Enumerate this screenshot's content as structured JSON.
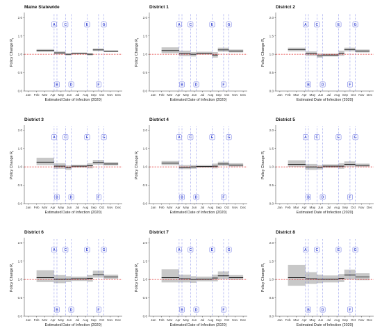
{
  "months": [
    "Jan",
    "Feb",
    "Mar",
    "Apr",
    "May",
    "Jun",
    "Jul",
    "Aug",
    "Sep",
    "Oct",
    "Nov",
    "Dec"
  ],
  "xlabel": "Estimated Date of Infection (2020)",
  "ylabel": "Policy Change R",
  "ylabel_sub": "t",
  "yticks": [
    "0.0",
    "0.5",
    "1.0",
    "1.5",
    "2.0"
  ],
  "policies": [
    {
      "label": "A",
      "month": 3.15,
      "pos": "top"
    },
    {
      "label": "B",
      "month": 3.5,
      "pos": "bottom"
    },
    {
      "label": "C",
      "month": 4.55,
      "pos": "top"
    },
    {
      "label": "D",
      "month": 5.25,
      "pos": "bottom"
    },
    {
      "label": "E",
      "month": 7.2,
      "pos": "top"
    },
    {
      "label": "F",
      "month": 8.6,
      "pos": "bottom"
    },
    {
      "label": "G",
      "month": 9.25,
      "pos": "top"
    }
  ],
  "colors": {
    "reference": "#e03030",
    "policy": "#5a64e0",
    "band": "#c8c8c8",
    "line": "#111111"
  },
  "chart_data": [
    {
      "type": "line",
      "title": "Maine Statewide",
      "ylim": [
        0,
        2
      ],
      "segments": [
        {
          "x": [
            1.0,
            3.15
          ],
          "y": 1.1,
          "lo": 1.07,
          "hi": 1.14
        },
        {
          "x": [
            3.15,
            4.55
          ],
          "y": 1.04,
          "lo": 1.0,
          "hi": 1.08
        },
        {
          "x": [
            4.55,
            5.25
          ],
          "y": 1.0,
          "lo": 0.97,
          "hi": 1.03
        },
        {
          "x": [
            5.25,
            7.2
          ],
          "y": 1.02,
          "lo": 1.0,
          "hi": 1.05
        },
        {
          "x": [
            7.2,
            7.9
          ],
          "y": 1.0,
          "lo": 0.97,
          "hi": 1.04
        },
        {
          "x": [
            7.9,
            9.25
          ],
          "y": 1.12,
          "lo": 1.09,
          "hi": 1.16
        },
        {
          "x": [
            9.25,
            11.0
          ],
          "y": 1.08,
          "lo": 1.06,
          "hi": 1.11
        }
      ]
    },
    {
      "type": "line",
      "title": "District 1",
      "ylim": [
        0,
        2
      ],
      "segments": [
        {
          "x": [
            1.0,
            3.15
          ],
          "y": 1.1,
          "lo": 1.03,
          "hi": 1.19
        },
        {
          "x": [
            3.15,
            4.55
          ],
          "y": 1.02,
          "lo": 0.95,
          "hi": 1.1
        },
        {
          "x": [
            4.55,
            5.25
          ],
          "y": 1.0,
          "lo": 0.94,
          "hi": 1.06
        },
        {
          "x": [
            5.25,
            7.2
          ],
          "y": 1.03,
          "lo": 0.99,
          "hi": 1.07
        },
        {
          "x": [
            7.2,
            7.9
          ],
          "y": 0.98,
          "lo": 0.91,
          "hi": 1.06
        },
        {
          "x": [
            7.9,
            9.25
          ],
          "y": 1.12,
          "lo": 1.07,
          "hi": 1.18
        },
        {
          "x": [
            9.25,
            11.0
          ],
          "y": 1.09,
          "lo": 1.05,
          "hi": 1.13
        }
      ]
    },
    {
      "type": "line",
      "title": "District 2",
      "ylim": [
        0,
        2
      ],
      "segments": [
        {
          "x": [
            1.0,
            3.15
          ],
          "y": 1.13,
          "lo": 1.08,
          "hi": 1.18
        },
        {
          "x": [
            3.15,
            4.55
          ],
          "y": 1.02,
          "lo": 0.96,
          "hi": 1.08
        },
        {
          "x": [
            4.55,
            5.25
          ],
          "y": 0.96,
          "lo": 0.91,
          "hi": 1.02
        },
        {
          "x": [
            5.25,
            7.2
          ],
          "y": 0.98,
          "lo": 0.94,
          "hi": 1.02
        },
        {
          "x": [
            7.2,
            7.9
          ],
          "y": 1.03,
          "lo": 0.96,
          "hi": 1.1
        },
        {
          "x": [
            7.9,
            9.25
          ],
          "y": 1.13,
          "lo": 1.08,
          "hi": 1.18
        },
        {
          "x": [
            9.25,
            11.0
          ],
          "y": 1.09,
          "lo": 1.05,
          "hi": 1.13
        }
      ]
    },
    {
      "type": "line",
      "title": "District 3",
      "ylim": [
        0,
        2
      ],
      "segments": [
        {
          "x": [
            1.0,
            3.15
          ],
          "y": 1.13,
          "lo": 1.05,
          "hi": 1.25
        },
        {
          "x": [
            3.15,
            4.55
          ],
          "y": 1.02,
          "lo": 0.95,
          "hi": 1.1
        },
        {
          "x": [
            4.55,
            5.25
          ],
          "y": 0.98,
          "lo": 0.92,
          "hi": 1.04
        },
        {
          "x": [
            5.25,
            7.2
          ],
          "y": 1.02,
          "lo": 0.98,
          "hi": 1.06
        },
        {
          "x": [
            7.2,
            7.9
          ],
          "y": 1.03,
          "lo": 0.96,
          "hi": 1.1
        },
        {
          "x": [
            7.9,
            9.25
          ],
          "y": 1.12,
          "lo": 1.06,
          "hi": 1.19
        },
        {
          "x": [
            9.25,
            11.0
          ],
          "y": 1.08,
          "lo": 1.04,
          "hi": 1.13
        }
      ]
    },
    {
      "type": "line",
      "title": "District 4",
      "ylim": [
        0,
        2
      ],
      "segments": [
        {
          "x": [
            1.0,
            3.15
          ],
          "y": 1.1,
          "lo": 1.05,
          "hi": 1.16
        },
        {
          "x": [
            3.15,
            4.55
          ],
          "y": 0.99,
          "lo": 0.94,
          "hi": 1.05
        },
        {
          "x": [
            4.55,
            5.25
          ],
          "y": 1.0,
          "lo": 0.95,
          "hi": 1.05
        },
        {
          "x": [
            5.25,
            7.2
          ],
          "y": 1.01,
          "lo": 0.98,
          "hi": 1.05
        },
        {
          "x": [
            7.2,
            7.9
          ],
          "y": 1.02,
          "lo": 0.96,
          "hi": 1.09
        },
        {
          "x": [
            7.9,
            9.25
          ],
          "y": 1.08,
          "lo": 1.03,
          "hi": 1.14
        },
        {
          "x": [
            9.25,
            11.0
          ],
          "y": 1.05,
          "lo": 1.01,
          "hi": 1.1
        }
      ]
    },
    {
      "type": "line",
      "title": "District 5",
      "ylim": [
        0,
        2
      ],
      "segments": [
        {
          "x": [
            1.0,
            3.15
          ],
          "y": 1.07,
          "lo": 1.0,
          "hi": 1.18
        },
        {
          "x": [
            3.15,
            4.55
          ],
          "y": 1.0,
          "lo": 0.92,
          "hi": 1.08
        },
        {
          "x": [
            4.55,
            5.25
          ],
          "y": 0.99,
          "lo": 0.93,
          "hi": 1.05
        },
        {
          "x": [
            5.25,
            7.2
          ],
          "y": 1.02,
          "lo": 0.97,
          "hi": 1.07
        },
        {
          "x": [
            7.2,
            7.9
          ],
          "y": 1.02,
          "lo": 0.95,
          "hi": 1.1
        },
        {
          "x": [
            7.9,
            9.25
          ],
          "y": 1.07,
          "lo": 1.01,
          "hi": 1.15
        },
        {
          "x": [
            9.25,
            11.0
          ],
          "y": 1.04,
          "lo": 1.0,
          "hi": 1.09
        }
      ]
    },
    {
      "type": "line",
      "title": "District 6",
      "ylim": [
        0,
        2
      ],
      "segments": [
        {
          "x": [
            1.0,
            3.15
          ],
          "y": 1.05,
          "lo": 0.93,
          "hi": 1.25
        },
        {
          "x": [
            3.15,
            4.55
          ],
          "y": 1.01,
          "lo": 0.9,
          "hi": 1.12
        },
        {
          "x": [
            4.55,
            5.25
          ],
          "y": 1.01,
          "lo": 0.93,
          "hi": 1.09
        },
        {
          "x": [
            5.25,
            7.2
          ],
          "y": 1.02,
          "lo": 0.96,
          "hi": 1.08
        },
        {
          "x": [
            7.2,
            7.9
          ],
          "y": 1.03,
          "lo": 0.94,
          "hi": 1.12
        },
        {
          "x": [
            7.9,
            9.25
          ],
          "y": 1.13,
          "lo": 1.05,
          "hi": 1.24
        },
        {
          "x": [
            9.25,
            11.0
          ],
          "y": 1.07,
          "lo": 1.02,
          "hi": 1.13
        }
      ]
    },
    {
      "type": "line",
      "title": "District 7",
      "ylim": [
        0,
        2
      ],
      "segments": [
        {
          "x": [
            1.0,
            3.15
          ],
          "y": 1.05,
          "lo": 0.92,
          "hi": 1.28
        },
        {
          "x": [
            3.15,
            4.55
          ],
          "y": 1.02,
          "lo": 0.92,
          "hi": 1.13
        },
        {
          "x": [
            4.55,
            5.25
          ],
          "y": 1.0,
          "lo": 0.91,
          "hi": 1.09
        },
        {
          "x": [
            5.25,
            7.2
          ],
          "y": 1.01,
          "lo": 0.95,
          "hi": 1.08
        },
        {
          "x": [
            7.2,
            7.9
          ],
          "y": 1.04,
          "lo": 0.95,
          "hi": 1.13
        },
        {
          "x": [
            7.9,
            9.25
          ],
          "y": 1.1,
          "lo": 1.01,
          "hi": 1.22
        },
        {
          "x": [
            9.25,
            11.0
          ],
          "y": 1.05,
          "lo": 0.99,
          "hi": 1.12
        }
      ]
    },
    {
      "type": "line",
      "title": "District 8",
      "ylim": [
        0,
        2
      ],
      "segments": [
        {
          "x": [
            1.0,
            3.15
          ],
          "y": 1.05,
          "lo": 0.83,
          "hi": 1.4
        },
        {
          "x": [
            3.15,
            4.55
          ],
          "y": 1.02,
          "lo": 0.88,
          "hi": 1.2
        },
        {
          "x": [
            4.55,
            5.25
          ],
          "y": 1.01,
          "lo": 0.9,
          "hi": 1.13
        },
        {
          "x": [
            5.25,
            7.2
          ],
          "y": 1.01,
          "lo": 0.92,
          "hi": 1.11
        },
        {
          "x": [
            7.2,
            7.9
          ],
          "y": 1.03,
          "lo": 0.93,
          "hi": 1.15
        },
        {
          "x": [
            7.9,
            9.25
          ],
          "y": 1.12,
          "lo": 1.0,
          "hi": 1.27
        },
        {
          "x": [
            9.25,
            11.0
          ],
          "y": 1.07,
          "lo": 0.98,
          "hi": 1.17
        }
      ]
    }
  ]
}
